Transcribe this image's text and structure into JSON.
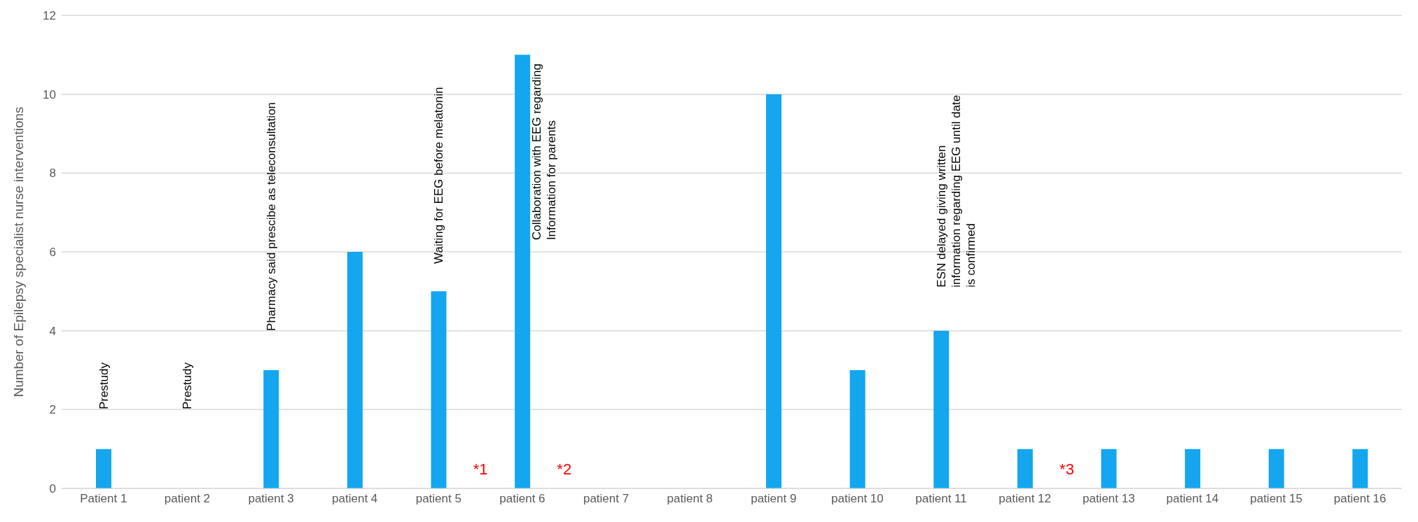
{
  "chart_data": {
    "type": "bar",
    "ylabel": "Number of Epilepsy specialist nurse interventions",
    "categories": [
      "Patient 1",
      "patient 2",
      "patient 3",
      "patient 4",
      "patient 5",
      "patient 6",
      "patient 7",
      "patient 8",
      "patient 9",
      "patient 10",
      "patient 11",
      "patient 12",
      "patient 13",
      "patient 14",
      "patient 15",
      "patient 16"
    ],
    "values": [
      1,
      0,
      3,
      6,
      5,
      11,
      0,
      0,
      10,
      3,
      4,
      1,
      1,
      1,
      1,
      1
    ],
    "color": "#14a6ef",
    "ylim": [
      0,
      12
    ],
    "yticks": [
      0,
      2,
      4,
      6,
      8,
      10,
      12
    ],
    "grid": "y",
    "annotations": [
      "Prestudy",
      "Prestudy",
      "Pharmacy said prescibe as teleconsultation",
      "Waiting for EEG before melatonin",
      "Collaboration with EEG regarding\nInformation for parents",
      "ESN delayed giving written\ninformation regarding EEG until date\nis confirmed",
      "*1",
      "*2",
      "*3"
    ]
  }
}
